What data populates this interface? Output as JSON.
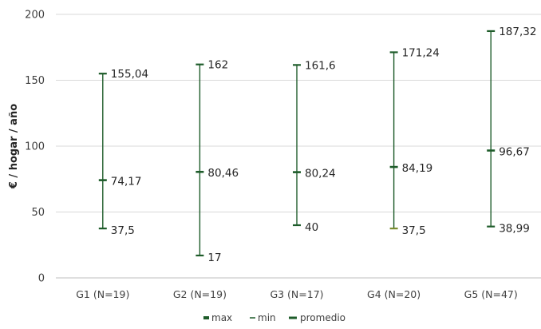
{
  "chart_data": {
    "type": "stock",
    "categories": [
      "G1 (N=19)",
      "G2 (N=19)",
      "G3 (N=17)",
      "G4 (N=20)",
      "G5 (N=47)"
    ],
    "series": [
      {
        "name": "max",
        "values": [
          155.04,
          162,
          161.6,
          171.24,
          187.32
        ],
        "labels": [
          "155,04",
          "162",
          "161,6",
          "171,24",
          "187,32"
        ]
      },
      {
        "name": "min",
        "values": [
          37.5,
          17,
          40,
          37.5,
          38.99
        ],
        "labels": [
          "37,5",
          "17",
          "40",
          "37,5",
          "38,99"
        ]
      },
      {
        "name": "promedio",
        "values": [
          74.17,
          80.46,
          80.24,
          84.19,
          96.67
        ],
        "labels": [
          "74,17",
          "80,46",
          "80,24",
          "84,19",
          "96,67"
        ]
      }
    ],
    "ylabel": "€ / hogar / año",
    "xlabel": "",
    "ylim": [
      0,
      200
    ],
    "yticks": [
      0,
      50,
      100,
      150,
      200
    ],
    "grid": true,
    "legend_position": "bottom",
    "colors": {
      "line": "#1e5c2a",
      "grid": "#d9d9d9",
      "g4_min_marker": "#7a8c2e"
    }
  }
}
